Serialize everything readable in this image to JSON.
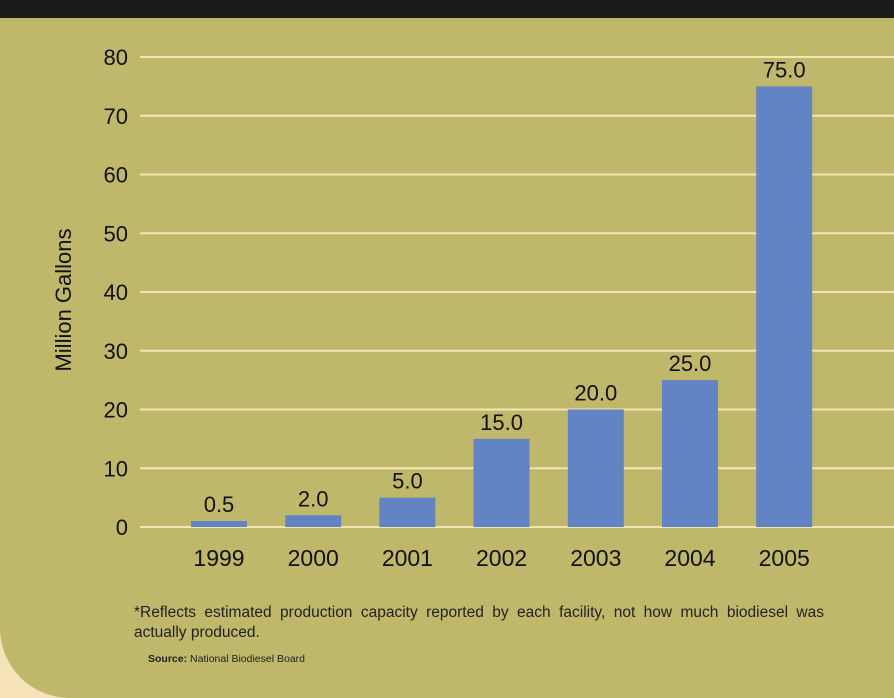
{
  "chart_data": {
    "type": "bar",
    "categories": [
      "1999",
      "2000",
      "2001",
      "2002",
      "2003",
      "2004",
      "2005"
    ],
    "values": [
      0.5,
      2.0,
      5.0,
      15.0,
      20.0,
      25.0,
      75.0
    ],
    "data_labels": [
      "0.5",
      "2.0",
      "5.0",
      "15.0",
      "20.0",
      "25.0",
      "75.0"
    ],
    "title": "",
    "xlabel": "",
    "ylabel": "Million Gallons",
    "ylim": [
      0,
      80
    ],
    "yticks": [
      0,
      10,
      20,
      30,
      40,
      50,
      60,
      70,
      80
    ],
    "grid": true,
    "bar_color": "#6384c4",
    "grid_color": "#f3e6b2",
    "background_color": "#bfb86a"
  },
  "footnote": "*Reflects estimated production capacity reported by each facility, not how much biodiesel was actually produced.",
  "source_label": "Source:",
  "source_text": "National Biodiesel Board"
}
